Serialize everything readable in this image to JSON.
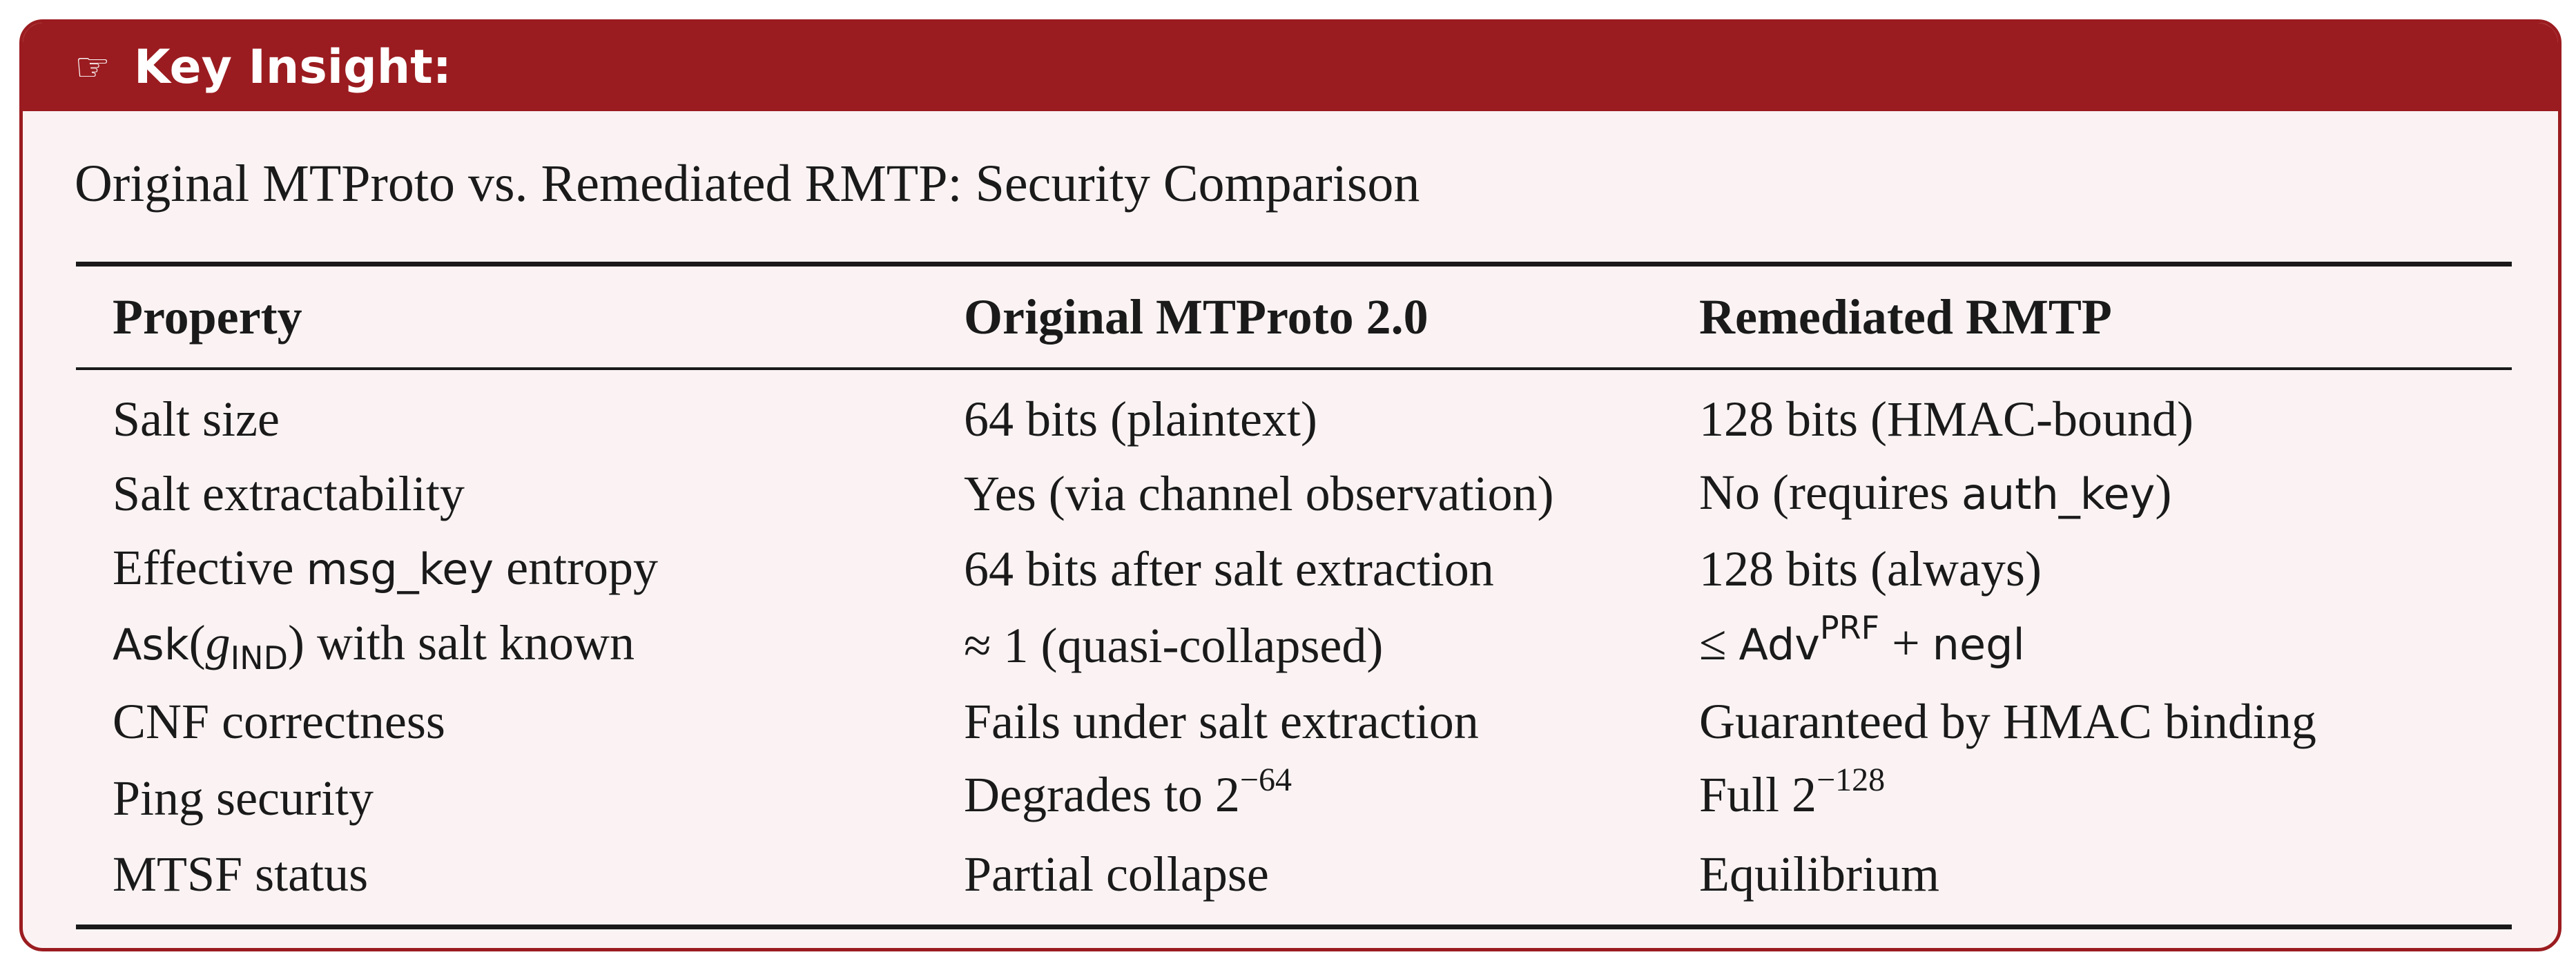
{
  "box": {
    "icon": "☞",
    "title": "Key Insight:"
  },
  "heading": "Original MTProto vs. Remediated RMTP: Security Comparison",
  "table": {
    "header": [
      "Property",
      "Original MTProto 2.0",
      "Remediated RMTP"
    ],
    "rows": [
      [
        "Salt size",
        "64 bits (plaintext)",
        "128 bits (HMAC-bound)"
      ],
      [
        "Salt extractability",
        "Yes (via channel observation)",
        [
          "No (requires ",
          "auth_key",
          ")"
        ]
      ],
      [
        [
          "Effective ",
          "msg_key",
          " entropy"
        ],
        "64 bits after salt extraction",
        "128 bits (always)"
      ],
      [
        [
          "Ask",
          "(",
          "g",
          "IND",
          ")",
          " with salt known"
        ],
        "≈ 1 (quasi-collapsed)",
        [
          "≤ ",
          "Adv",
          "PRF",
          " + ",
          "negl"
        ]
      ],
      [
        "CNF correctness",
        "Fails under salt extraction",
        "Guaranteed by HMAC binding"
      ],
      [
        "Ping security",
        [
          "Degrades to 2",
          "−64"
        ],
        [
          "Full 2",
          "−128"
        ]
      ],
      [
        "MTSF status",
        "Partial collapse",
        "Equilibrium"
      ]
    ]
  }
}
